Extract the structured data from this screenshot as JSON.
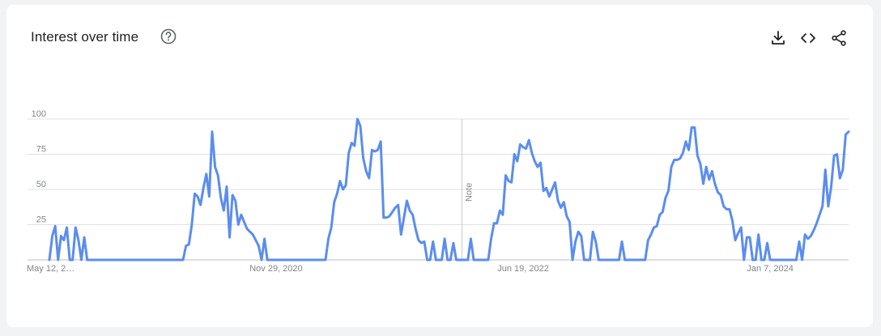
{
  "header": {
    "title": "Interest over time",
    "help_icon": "help-circle-icon",
    "actions": [
      {
        "name": "download",
        "icon": "download-icon"
      },
      {
        "name": "embed",
        "icon": "code-icon"
      },
      {
        "name": "share",
        "icon": "share-icon"
      }
    ]
  },
  "colors": {
    "line": "#5b8def",
    "grid": "#e0e0e0",
    "axis": "#bdbdbd",
    "text": "#80868b"
  },
  "chart_data": {
    "type": "line",
    "title": "",
    "xlabel": "",
    "ylabel": "",
    "ylim": [
      0,
      100
    ],
    "yticks": [
      0,
      25,
      50,
      75,
      100
    ],
    "ytick_labels": [
      "",
      "25",
      "50",
      "75",
      "100"
    ],
    "xtick_labels": [
      "May 12, 2…",
      "Nov 29, 2020",
      "Jun 19, 2022",
      "Jan 7, 2024"
    ],
    "xtick_index": [
      0,
      78,
      163,
      248
    ],
    "note": {
      "label": "Note",
      "index": 142
    },
    "grid": true,
    "series": [
      {
        "values": [
          0,
          17,
          24,
          0,
          17,
          14,
          23,
          0,
          0,
          23,
          14,
          0,
          16,
          0,
          0,
          0,
          0,
          0,
          0,
          0,
          0,
          0,
          0,
          0,
          0,
          0,
          0,
          0,
          0,
          0,
          0,
          0,
          0,
          0,
          0,
          0,
          0,
          0,
          0,
          0,
          0,
          0,
          0,
          0,
          0,
          0,
          0,
          10,
          11,
          25,
          47,
          45,
          39,
          51,
          61,
          45,
          91,
          66,
          60,
          44,
          35,
          52,
          16,
          46,
          42,
          25,
          32,
          27,
          22,
          20,
          18,
          14,
          10,
          0,
          15,
          0,
          0,
          0,
          0,
          0,
          0,
          0,
          0,
          0,
          0,
          0,
          0,
          0,
          0,
          0,
          0,
          0,
          0,
          0,
          0,
          0,
          15,
          23,
          41,
          47,
          56,
          50,
          53,
          76,
          83,
          81,
          100,
          95,
          72,
          63,
          58,
          78,
          77,
          78,
          84,
          30,
          30,
          31,
          34,
          37,
          39,
          18,
          30,
          42,
          35,
          32,
          22,
          14,
          12,
          13,
          0,
          0,
          13,
          0,
          0,
          0,
          15,
          0,
          0,
          12,
          0,
          0,
          0,
          0,
          0,
          15,
          0,
          0,
          0,
          0,
          0,
          0,
          15,
          26,
          26,
          35,
          32,
          60,
          56,
          55,
          75,
          70,
          82,
          80,
          79,
          85,
          76,
          70,
          66,
          69,
          49,
          51,
          45,
          50,
          55,
          42,
          37,
          41,
          31,
          27,
          0,
          13,
          20,
          17,
          0,
          0,
          0,
          20,
          13,
          0,
          0,
          0,
          0,
          0,
          0,
          0,
          0,
          13,
          0,
          0,
          0,
          0,
          0,
          0,
          0,
          0,
          14,
          18,
          23,
          24,
          32,
          34,
          44,
          49,
          66,
          71,
          71,
          72,
          76,
          84,
          78,
          94,
          94,
          74,
          68,
          54,
          66,
          57,
          63,
          54,
          48,
          46,
          38,
          36,
          36,
          28,
          14,
          19,
          23,
          0,
          16,
          16,
          0,
          0,
          18,
          0,
          0,
          12,
          0,
          0,
          0,
          0,
          0,
          0,
          0,
          0,
          0,
          0,
          13,
          0,
          18,
          15,
          17,
          21,
          26,
          32,
          38,
          64,
          38,
          52,
          74,
          75,
          58,
          64,
          89,
          91
        ]
      }
    ]
  }
}
